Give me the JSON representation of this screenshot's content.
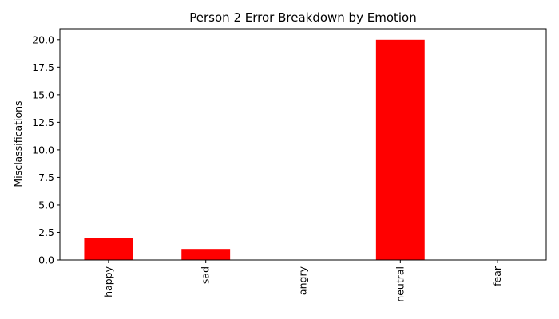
{
  "chart_data": {
    "type": "bar",
    "title": "Person 2 Error Breakdown by Emotion",
    "xlabel": "",
    "ylabel": "Misclassifications",
    "categories": [
      "happy",
      "sad",
      "angry",
      "neutral",
      "fear"
    ],
    "values": [
      2,
      1,
      0,
      20,
      0
    ],
    "ylim": [
      0,
      21
    ],
    "yticks": [
      "0.0",
      "2.5",
      "5.0",
      "7.5",
      "10.0",
      "12.5",
      "15.0",
      "17.5",
      "20.0"
    ],
    "bar_color": "#ff0000",
    "grid": false,
    "legend": "none"
  }
}
